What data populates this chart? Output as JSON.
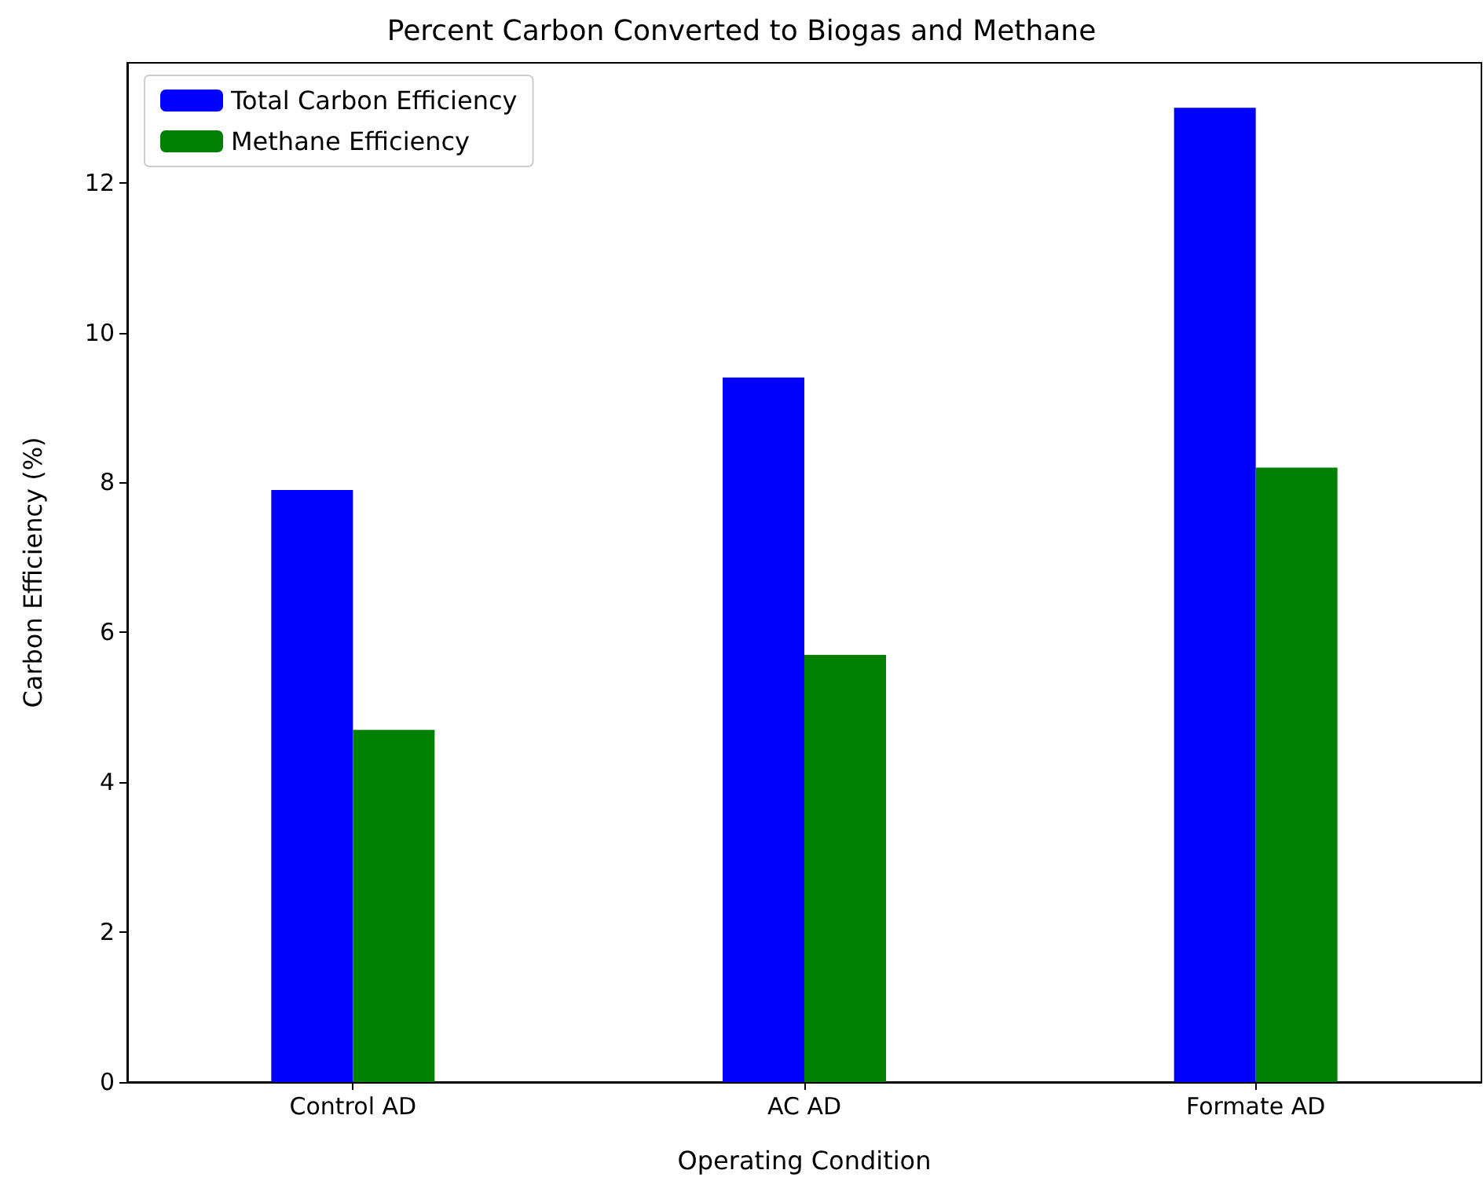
{
  "chart_data": {
    "type": "bar",
    "title": "Percent Carbon Converted to Biogas and Methane",
    "xlabel": "Operating Condition",
    "ylabel": "Carbon Efficiency (%)",
    "categories": [
      "Control AD",
      "AC AD",
      "Formate AD"
    ],
    "series": [
      {
        "name": "Total Carbon Efficiency",
        "color": "#0000ff",
        "values": [
          7.9,
          9.4,
          13.0
        ]
      },
      {
        "name": "Methane Efficiency",
        "color": "#008000",
        "values": [
          4.7,
          5.7,
          8.2
        ]
      }
    ],
    "ylim": [
      0,
      13.6
    ],
    "yticks": [
      0,
      2,
      4,
      6,
      8,
      10,
      12
    ],
    "legend": "top left"
  }
}
